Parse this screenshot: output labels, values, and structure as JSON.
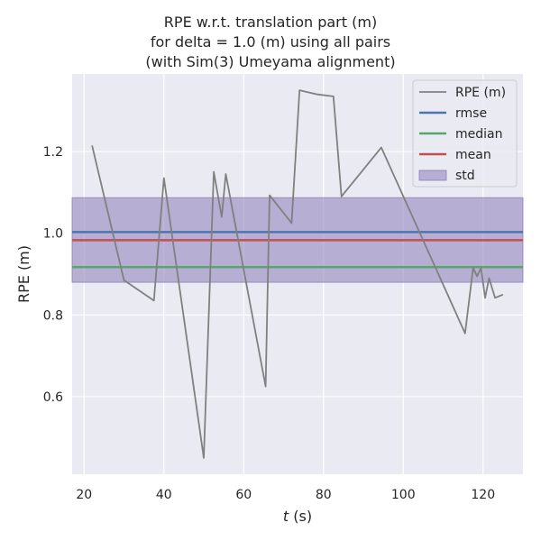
{
  "chart_data": {
    "type": "line",
    "title_lines": [
      "RPE w.r.t. translation part (m)",
      "for delta = 1.0 (m) using all pairs",
      "(with Sim(3) Umeyama alignment)"
    ],
    "xlabel_italic": "t",
    "xlabel_rest": " (s)",
    "ylabel": "RPE (m)",
    "xlim": [
      17,
      130
    ],
    "ylim": [
      0.41,
      1.39
    ],
    "xticks": [
      20,
      40,
      60,
      80,
      100,
      120
    ],
    "yticks": [
      0.6,
      0.8,
      1.0,
      1.2
    ],
    "ytick_labels": [
      "0.6",
      "0.8",
      "1.0",
      "1.2"
    ],
    "grid": true,
    "legend_position": "top-right",
    "series": [
      {
        "name": "RPE (m)",
        "color": "#808080",
        "x": [
          22.0,
          30.0,
          37.5,
          40.0,
          50.0,
          52.5,
          54.5,
          55.5,
          65.5,
          66.5,
          72.0,
          74.0,
          78.5,
          82.5,
          84.5,
          94.5,
          115.5,
          117.5,
          118.5,
          119.5,
          120.5,
          121.5,
          123.0,
          125.0
        ],
        "y": [
          1.215,
          0.885,
          0.835,
          1.135,
          0.45,
          1.15,
          1.04,
          1.145,
          0.625,
          1.093,
          1.025,
          1.35,
          1.34,
          1.335,
          1.09,
          1.21,
          0.755,
          0.915,
          0.895,
          0.915,
          0.842,
          0.89,
          0.842,
          0.85
        ]
      }
    ],
    "hlines": [
      {
        "name": "rmse",
        "value": 1.003,
        "color": "#4c72b0"
      },
      {
        "name": "median",
        "value": 0.917,
        "color": "#55a868"
      },
      {
        "name": "mean",
        "value": 0.983,
        "color": "#c44e52"
      }
    ],
    "band": {
      "name": "std",
      "low": 0.88,
      "high": 1.087,
      "color": "#8172b3"
    }
  }
}
